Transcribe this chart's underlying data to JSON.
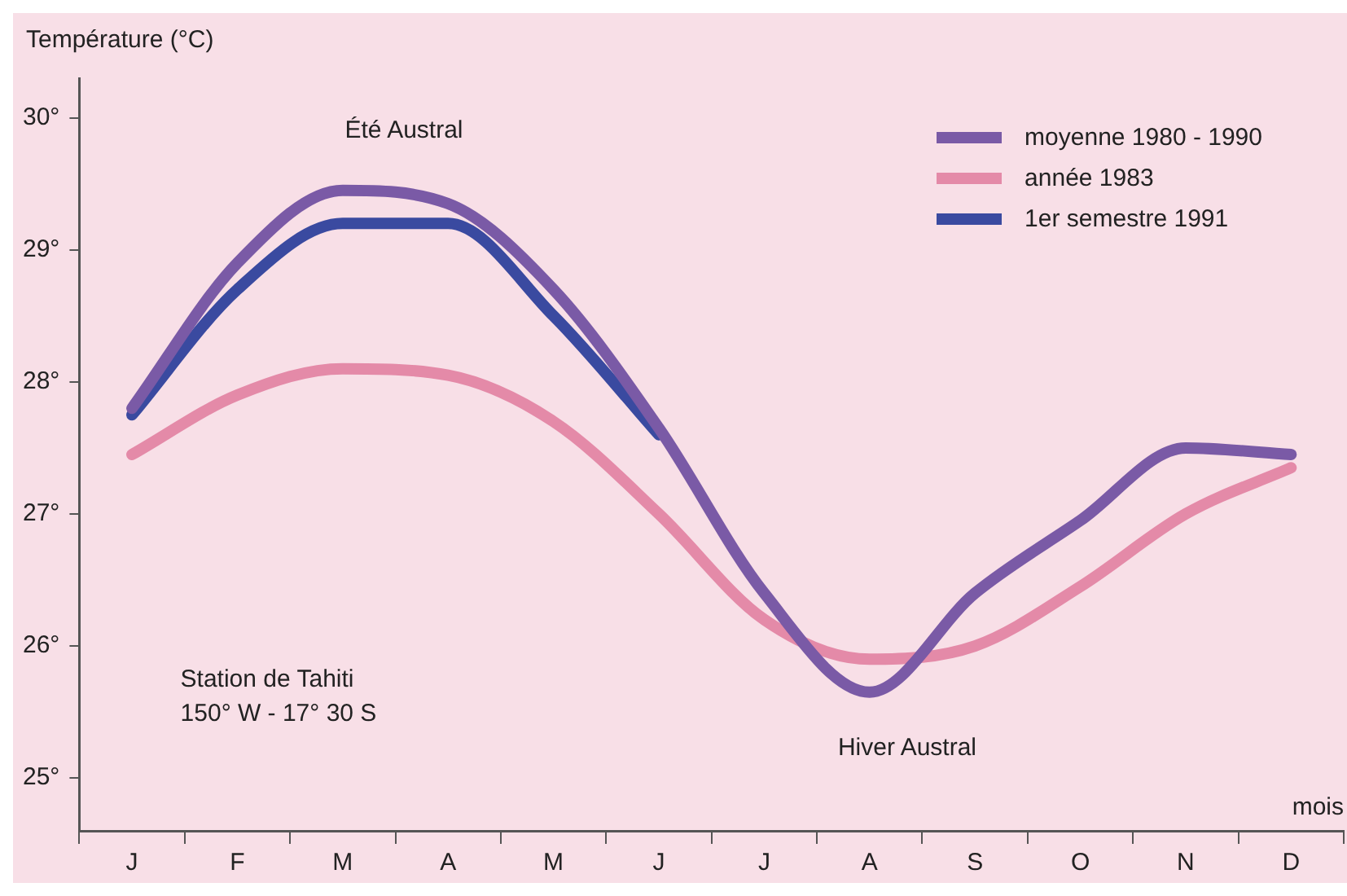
{
  "chart_data": {
    "type": "line",
    "ylabel": "Température (°C)",
    "xlabel": "mois",
    "categories": [
      "J",
      "F",
      "M",
      "A",
      "M",
      "J",
      "J",
      "A",
      "S",
      "O",
      "N",
      "D"
    ],
    "series": [
      {
        "name": "moyenne 1980 - 1990",
        "color": "#7a5aa6",
        "values": [
          27.8,
          28.9,
          29.45,
          29.35,
          28.7,
          27.65,
          26.4,
          25.65,
          26.4,
          26.95,
          27.5,
          27.45
        ]
      },
      {
        "name": "année 1983",
        "color": "#e48aa8",
        "values": [
          27.45,
          27.9,
          28.1,
          28.05,
          27.7,
          27.0,
          26.2,
          25.9,
          26.0,
          26.45,
          27.0,
          27.35
        ]
      },
      {
        "name": "1er semestre 1991",
        "color": "#3a4aa0",
        "values": [
          27.75,
          28.7,
          29.2,
          29.2,
          28.5,
          27.6,
          null,
          null,
          null,
          null,
          null,
          null
        ]
      }
    ],
    "ylim": [
      24.6,
      30.3
    ],
    "yticks": [
      {
        "value": 25,
        "label": "25°"
      },
      {
        "value": 26,
        "label": "26°"
      },
      {
        "value": 27,
        "label": "27°"
      },
      {
        "value": 28,
        "label": "28°"
      },
      {
        "value": 29,
        "label": "29°"
      },
      {
        "value": 30,
        "label": "30°"
      }
    ],
    "annotations": [
      "Été Austral",
      "Hiver Austral",
      "Station de Tahiti",
      "150° W - 17° 30 S"
    ],
    "legend": "top right",
    "grid": false,
    "marker": "none",
    "line_style": "solid"
  }
}
